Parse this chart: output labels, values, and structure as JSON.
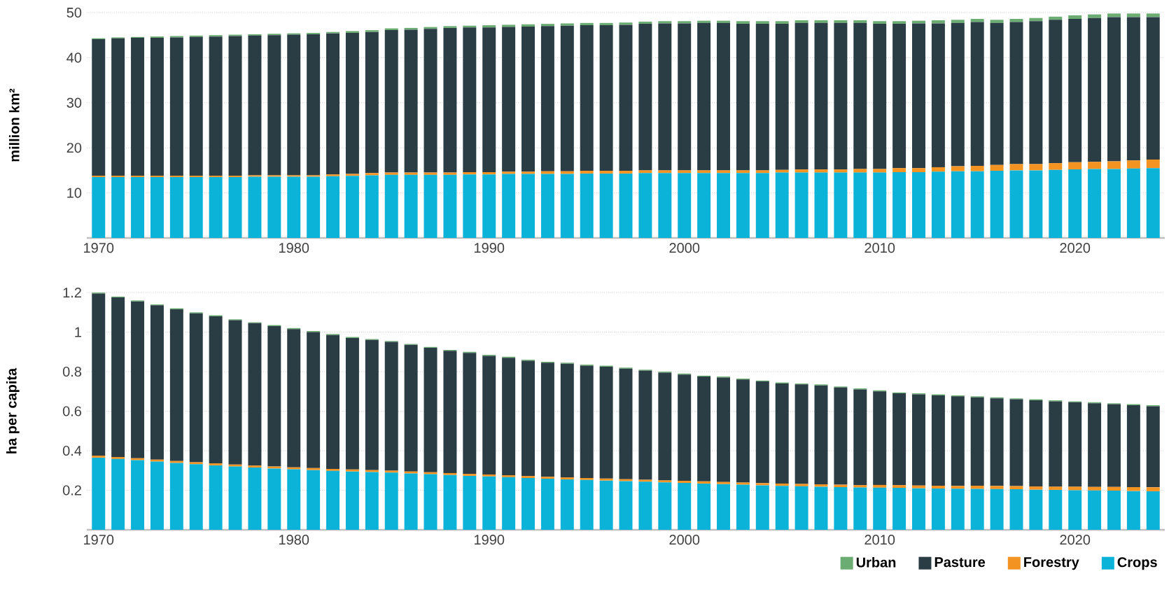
{
  "chart_data": [
    {
      "type": "bar",
      "stacked": true,
      "ylabel": "million km²",
      "grid": "y",
      "x": [
        1970,
        1971,
        1972,
        1973,
        1974,
        1975,
        1976,
        1977,
        1978,
        1979,
        1980,
        1981,
        1982,
        1983,
        1984,
        1985,
        1986,
        1987,
        1988,
        1989,
        1990,
        1991,
        1992,
        1993,
        1994,
        1995,
        1996,
        1997,
        1998,
        1999,
        2000,
        2001,
        2002,
        2003,
        2004,
        2005,
        2006,
        2007,
        2008,
        2009,
        2010,
        2011,
        2012,
        2013,
        2014,
        2015,
        2016,
        2017,
        2018,
        2019,
        2020,
        2021,
        2022,
        2023,
        2024
      ],
      "xlim": [
        1969.4,
        2024.6
      ],
      "xticks": [
        1970,
        1980,
        1990,
        2000,
        2010,
        2020
      ],
      "ylim": [
        0,
        50
      ],
      "yticks": [
        10,
        20,
        30,
        40,
        50
      ],
      "series": [
        {
          "color": "#0bb3d9",
          "values": [
            13.5,
            13.5,
            13.5,
            13.5,
            13.5,
            13.5,
            13.5,
            13.5,
            13.6,
            13.6,
            13.6,
            13.6,
            13.7,
            13.8,
            13.9,
            14.0,
            14.0,
            14.0,
            14.0,
            14.1,
            14.1,
            14.2,
            14.2,
            14.2,
            14.2,
            14.3,
            14.3,
            14.3,
            14.4,
            14.4,
            14.4,
            14.4,
            14.4,
            14.4,
            14.4,
            14.5,
            14.5,
            14.5,
            14.5,
            14.5,
            14.5,
            14.6,
            14.6,
            14.7,
            14.8,
            14.8,
            14.9,
            15.0,
            15.0,
            15.1,
            15.2,
            15.3,
            15.3,
            15.4,
            15.5
          ]
        },
        {
          "color": "#f39322",
          "values": [
            0.3,
            0.3,
            0.3,
            0.3,
            0.3,
            0.3,
            0.3,
            0.3,
            0.3,
            0.3,
            0.3,
            0.3,
            0.4,
            0.4,
            0.5,
            0.5,
            0.5,
            0.5,
            0.5,
            0.5,
            0.5,
            0.5,
            0.5,
            0.6,
            0.6,
            0.6,
            0.6,
            0.6,
            0.6,
            0.6,
            0.6,
            0.6,
            0.6,
            0.6,
            0.6,
            0.6,
            0.7,
            0.7,
            0.7,
            0.8,
            0.8,
            0.9,
            0.9,
            1.0,
            1.1,
            1.2,
            1.3,
            1.4,
            1.4,
            1.5,
            1.6,
            1.6,
            1.7,
            1.8,
            1.9
          ]
        },
        {
          "color": "#2a3c44",
          "values": [
            30.3,
            30.5,
            30.6,
            30.6,
            30.7,
            30.8,
            30.9,
            31.0,
            31.0,
            31.1,
            31.2,
            31.3,
            31.3,
            31.3,
            31.3,
            31.6,
            31.7,
            31.9,
            32.1,
            32.1,
            32.1,
            32.1,
            32.2,
            32.2,
            32.3,
            32.3,
            32.3,
            32.4,
            32.5,
            32.6,
            32.6,
            32.7,
            32.7,
            32.5,
            32.5,
            32.4,
            32.5,
            32.5,
            32.5,
            32.4,
            32.2,
            32.0,
            32.1,
            31.9,
            31.8,
            31.9,
            31.5,
            31.5,
            31.7,
            31.8,
            31.8,
            31.9,
            32.0,
            31.8,
            31.6
          ]
        },
        {
          "color": "#6aac72",
          "values": [
            0.2,
            0.2,
            0.2,
            0.3,
            0.3,
            0.3,
            0.3,
            0.3,
            0.3,
            0.3,
            0.3,
            0.3,
            0.3,
            0.4,
            0.4,
            0.4,
            0.4,
            0.4,
            0.4,
            0.4,
            0.5,
            0.5,
            0.5,
            0.5,
            0.5,
            0.5,
            0.5,
            0.5,
            0.5,
            0.5,
            0.5,
            0.5,
            0.5,
            0.6,
            0.6,
            0.6,
            0.6,
            0.6,
            0.6,
            0.6,
            0.6,
            0.6,
            0.6,
            0.7,
            0.7,
            0.7,
            0.7,
            0.7,
            0.7,
            0.7,
            0.8,
            0.8,
            0.8,
            0.8,
            0.8
          ]
        }
      ]
    },
    {
      "type": "bar",
      "stacked": true,
      "ylabel": "ha per capita",
      "grid": "y",
      "legend": "bottom right",
      "x": [
        1970,
        1971,
        1972,
        1973,
        1974,
        1975,
        1976,
        1977,
        1978,
        1979,
        1980,
        1981,
        1982,
        1983,
        1984,
        1985,
        1986,
        1987,
        1988,
        1989,
        1990,
        1991,
        1992,
        1993,
        1994,
        1995,
        1996,
        1997,
        1998,
        1999,
        2000,
        2001,
        2002,
        2003,
        2004,
        2005,
        2006,
        2007,
        2008,
        2009,
        2010,
        2011,
        2012,
        2013,
        2014,
        2015,
        2016,
        2017,
        2018,
        2019,
        2020,
        2021,
        2022,
        2023,
        2024
      ],
      "xlim": [
        1969.4,
        2024.6
      ],
      "xticks": [
        1970,
        1980,
        1990,
        2000,
        2010,
        2020
      ],
      "ylim": [
        0,
        1.2
      ],
      "yticks": [
        0.2,
        0.4,
        0.6,
        0.8,
        1,
        1.2
      ],
      "series": [
        {
          "name": "Crops",
          "color": "#0bb3d9",
          "values": [
            0.365,
            0.358,
            0.352,
            0.345,
            0.338,
            0.332,
            0.326,
            0.32,
            0.315,
            0.31,
            0.306,
            0.302,
            0.298,
            0.295,
            0.292,
            0.289,
            0.285,
            0.281,
            0.277,
            0.273,
            0.27,
            0.266,
            0.262,
            0.258,
            0.255,
            0.252,
            0.249,
            0.246,
            0.243,
            0.24,
            0.237,
            0.234,
            0.231,
            0.228,
            0.225,
            0.222,
            0.22,
            0.218,
            0.216,
            0.214,
            0.213,
            0.212,
            0.21,
            0.209,
            0.208,
            0.207,
            0.206,
            0.205,
            0.203,
            0.202,
            0.2,
            0.199,
            0.198,
            0.196,
            0.195
          ]
        },
        {
          "name": "Forestry",
          "color": "#f39322",
          "values": [
            0.01,
            0.01,
            0.01,
            0.01,
            0.01,
            0.01,
            0.01,
            0.01,
            0.01,
            0.01,
            0.01,
            0.01,
            0.01,
            0.01,
            0.01,
            0.01,
            0.01,
            0.01,
            0.01,
            0.01,
            0.01,
            0.01,
            0.01,
            0.01,
            0.01,
            0.01,
            0.01,
            0.01,
            0.01,
            0.01,
            0.011,
            0.011,
            0.011,
            0.011,
            0.011,
            0.012,
            0.012,
            0.012,
            0.012,
            0.012,
            0.014,
            0.014,
            0.014,
            0.014,
            0.014,
            0.016,
            0.016,
            0.016,
            0.016,
            0.016,
            0.018,
            0.018,
            0.019,
            0.02,
            0.02
          ]
        },
        {
          "name": "Pasture",
          "color": "#2a3c44",
          "values": [
            0.82,
            0.807,
            0.793,
            0.78,
            0.767,
            0.753,
            0.744,
            0.73,
            0.72,
            0.71,
            0.699,
            0.688,
            0.677,
            0.665,
            0.658,
            0.651,
            0.64,
            0.629,
            0.618,
            0.612,
            0.6,
            0.594,
            0.583,
            0.577,
            0.575,
            0.568,
            0.566,
            0.559,
            0.552,
            0.545,
            0.537,
            0.53,
            0.528,
            0.521,
            0.514,
            0.506,
            0.503,
            0.5,
            0.492,
            0.484,
            0.473,
            0.464,
            0.461,
            0.457,
            0.453,
            0.447,
            0.443,
            0.439,
            0.436,
            0.432,
            0.427,
            0.423,
            0.418,
            0.414,
            0.41
          ]
        },
        {
          "name": "Urban",
          "color": "#6aac72",
          "values": [
            0.005,
            0.005,
            0.005,
            0.005,
            0.005,
            0.005,
            0.005,
            0.005,
            0.005,
            0.005,
            0.005,
            0.005,
            0.005,
            0.005,
            0.005,
            0.005,
            0.005,
            0.005,
            0.005,
            0.005,
            0.005,
            0.005,
            0.005,
            0.005,
            0.005,
            0.005,
            0.005,
            0.005,
            0.005,
            0.005,
            0.005,
            0.005,
            0.005,
            0.005,
            0.005,
            0.005,
            0.005,
            0.005,
            0.005,
            0.005,
            0.005,
            0.005,
            0.005,
            0.005,
            0.005,
            0.005,
            0.005,
            0.005,
            0.005,
            0.005,
            0.005,
            0.005,
            0.005,
            0.005,
            0.005
          ]
        }
      ]
    }
  ]
}
